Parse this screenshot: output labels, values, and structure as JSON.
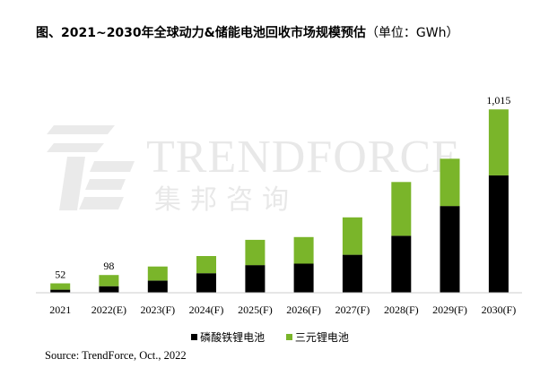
{
  "title_main": "图、2021~2030年全球动力&储能电池回收市场规模预估",
  "title_unit": "（单位：GWh）",
  "watermark": {
    "name": "TRENDFORCE",
    "chinese": "集邦咨询"
  },
  "source": "Source: TrendForce, Oct., 2022",
  "colors": {
    "lfp": "#000000",
    "ternary": "#7ab52a",
    "axis": "#cccccc"
  },
  "chart_data": {
    "type": "bar",
    "stacked": true,
    "categories": [
      "2021",
      "2022(E)",
      "2023(F)",
      "2024(F)",
      "2025(F)",
      "2026(F)",
      "2027(F)",
      "2028(F)",
      "2029(F)",
      "2030(F)"
    ],
    "series": [
      {
        "name": "磷酸铁锂电池",
        "color": "#000000",
        "values": [
          17,
          36,
          67,
          108,
          153,
          161,
          210,
          315,
          480,
          650
        ]
      },
      {
        "name": "三元锂电池",
        "color": "#7ab52a",
        "values": [
          35,
          62,
          78,
          95,
          140,
          147,
          207,
          298,
          262,
          365
        ]
      }
    ],
    "data_labels": [
      {
        "category": "2021",
        "label": "52"
      },
      {
        "category": "2022(E)",
        "label": "98"
      },
      {
        "category": "2030(F)",
        "label": "1,015"
      }
    ],
    "ylim": [
      0,
      1100
    ],
    "grid": false,
    "legend_position": "bottom"
  }
}
